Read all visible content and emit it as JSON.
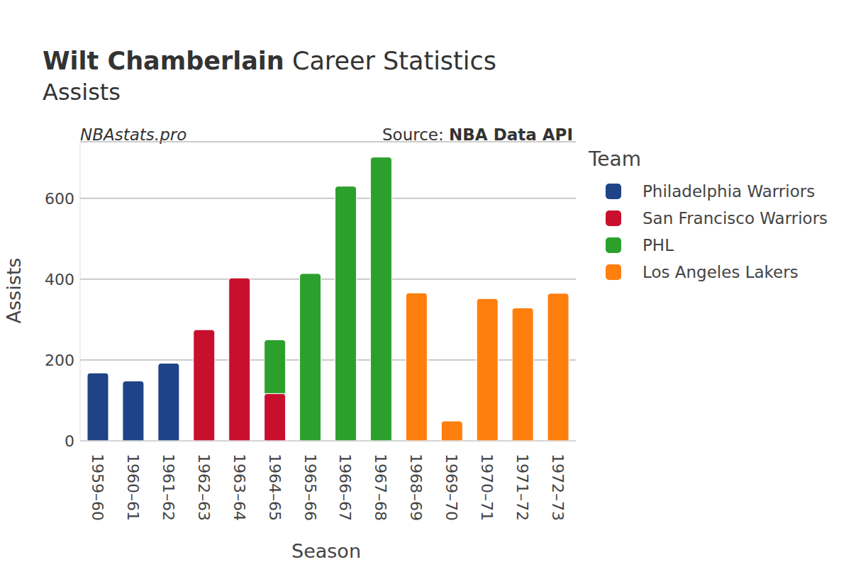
{
  "chart_data": {
    "type": "bar",
    "title": "Wilt Chamberlain Career Statistics",
    "subtitle": "Assists",
    "annotations": [
      "NBAstats.pro",
      "Source: NBA Data API"
    ],
    "x_label": "Season",
    "y_label": "Assists",
    "legend_title": "Team",
    "categories": [
      "1959–60",
      "1960–61",
      "1961–62",
      "1962–63",
      "1963–64",
      "1964–65",
      "1965–66",
      "1966–67",
      "1967–68",
      "1968–69",
      "1969–70",
      "1970–71",
      "1971–72",
      "1972–73"
    ],
    "series": [
      {
        "name": "Philadelphia Warriors",
        "color": "#1f4387",
        "values": [
          168,
          148,
          192,
          null,
          null,
          null,
          null,
          null,
          null,
          null,
          null,
          null,
          null,
          null
        ]
      },
      {
        "name": "San Francisco Warriors",
        "color": "#c8102e",
        "values": [
          null,
          null,
          null,
          275,
          403,
          117,
          null,
          null,
          null,
          null,
          null,
          null,
          null,
          null
        ]
      },
      {
        "name": "PHL",
        "color": "#2ca02c",
        "values": [
          null,
          null,
          null,
          null,
          null,
          133,
          414,
          630,
          702,
          null,
          null,
          null,
          null,
          null
        ]
      },
      {
        "name": "Los Angeles Lakers",
        "color": "#ff7f0e",
        "values": [
          null,
          null,
          null,
          null,
          null,
          null,
          null,
          null,
          null,
          366,
          49,
          352,
          329,
          365
        ]
      }
    ],
    "ylim": [
      0,
      740
    ],
    "yticks": [
      0,
      200,
      400,
      600
    ],
    "grid": true,
    "stacked": true,
    "legend": "right"
  }
}
